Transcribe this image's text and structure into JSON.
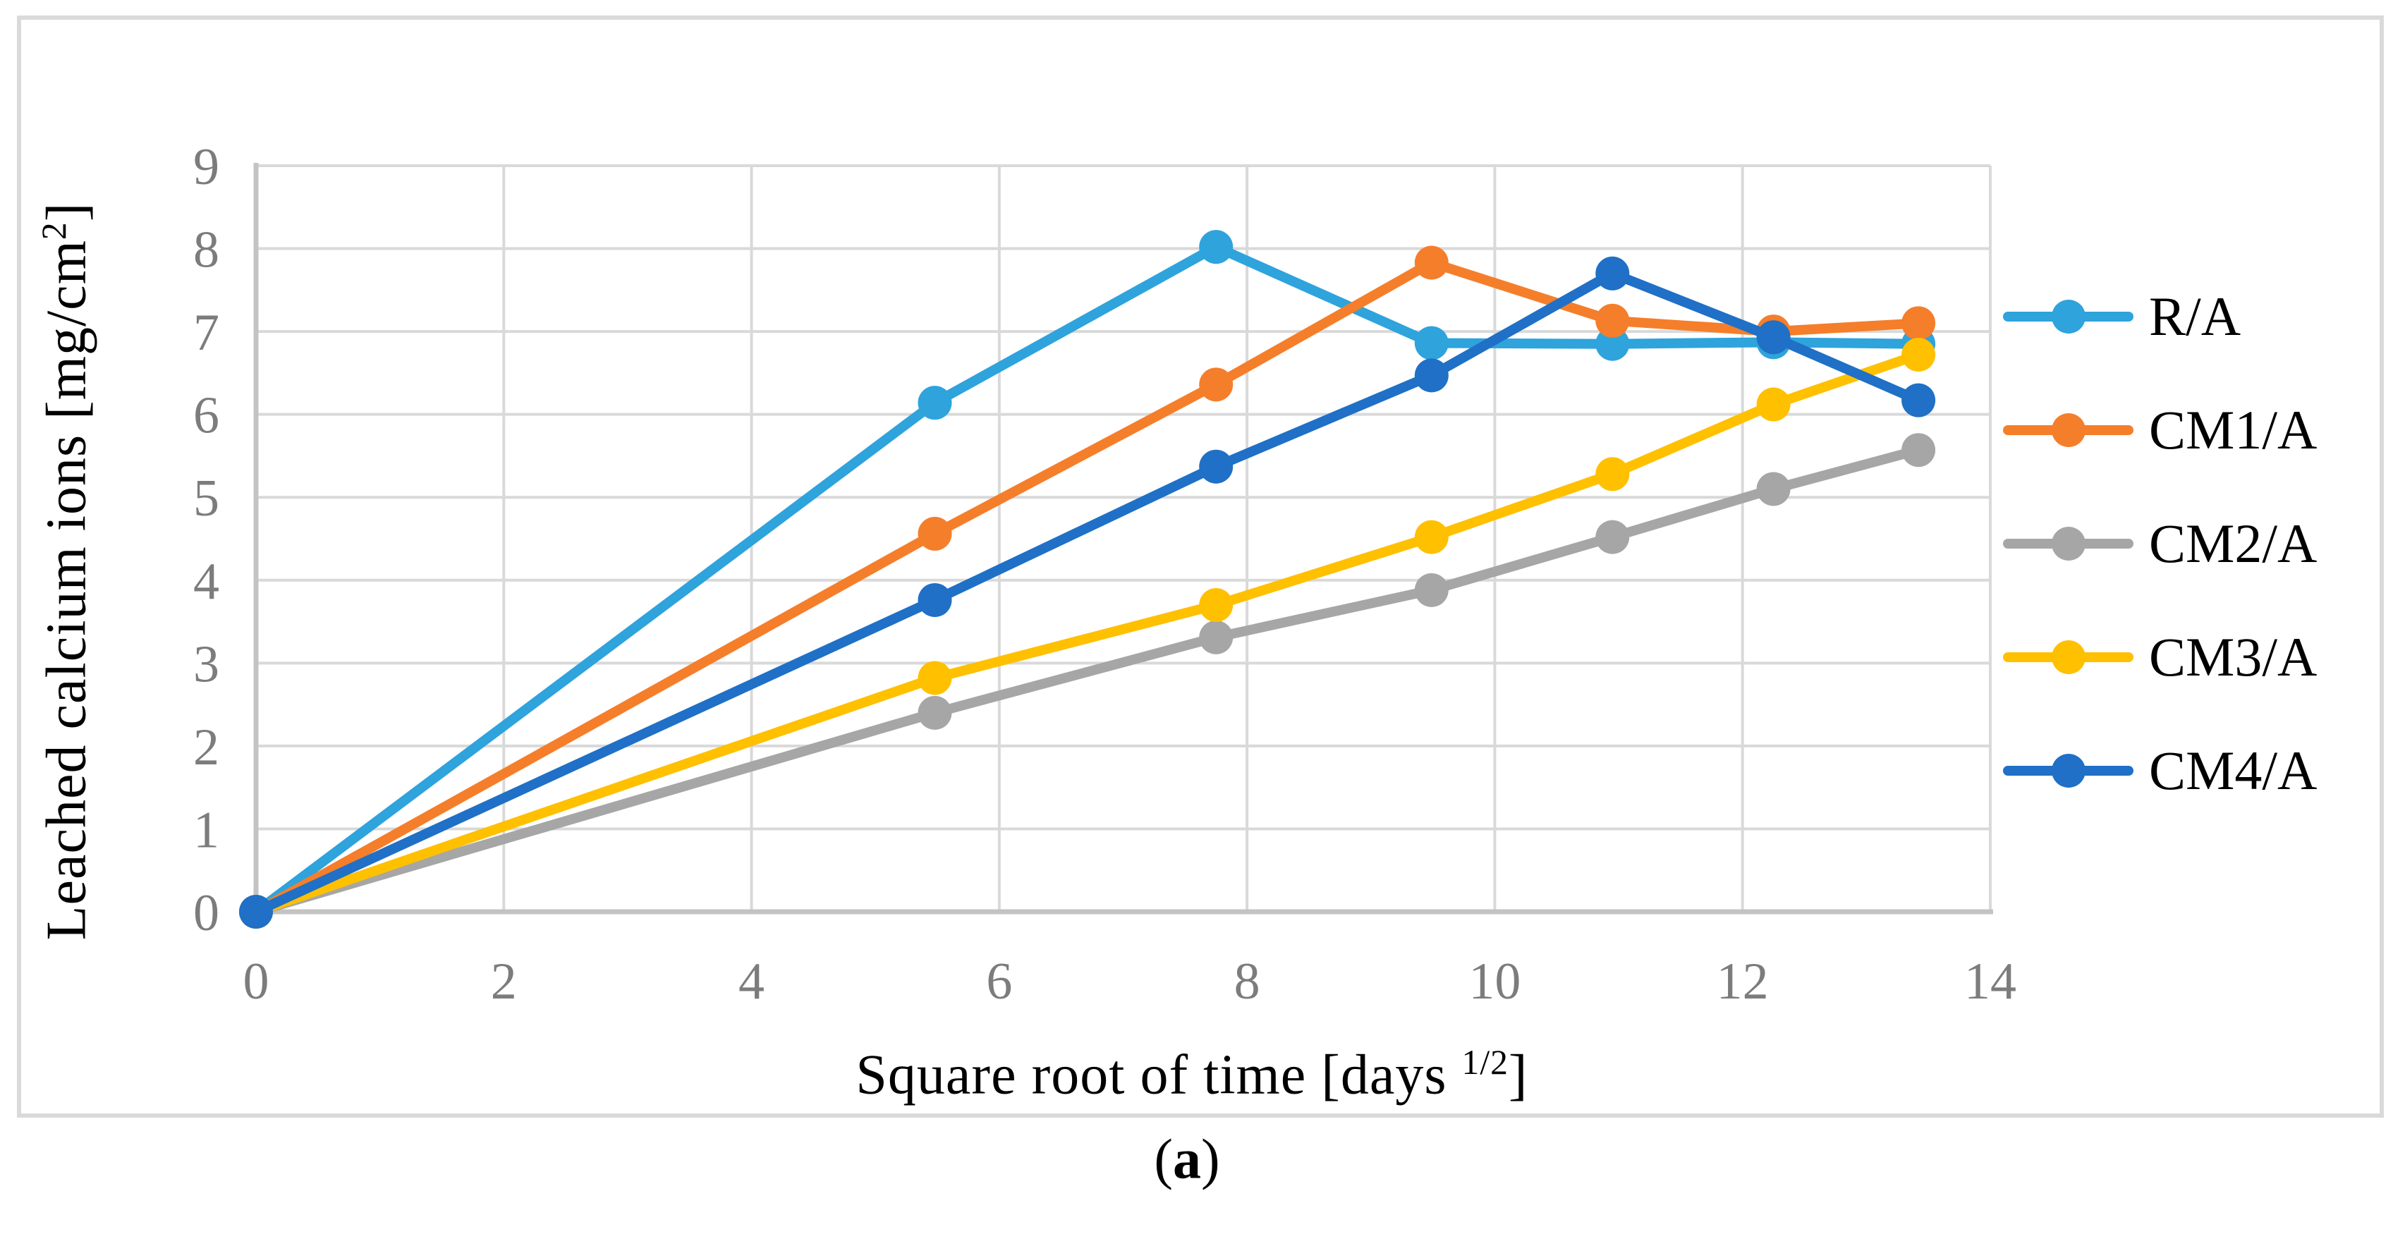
{
  "figure": {
    "caption": {
      "open": "(",
      "letter": "a",
      "close": ")"
    }
  },
  "chart_data": {
    "type": "line",
    "title": "",
    "xlabel": {
      "prefix": "Square root of time [days ",
      "sup": "1/2",
      "suffix": "]"
    },
    "ylabel": {
      "prefix": "Leached calcium ions [mg/cm",
      "sup": "2",
      "suffix": "]"
    },
    "x": [
      0,
      5.48,
      7.75,
      9.49,
      10.95,
      12.25,
      13.42
    ],
    "xlim": [
      0,
      14
    ],
    "ylim": [
      0,
      9
    ],
    "x_ticks": [
      0,
      2,
      4,
      6,
      8,
      10,
      12,
      14
    ],
    "y_ticks": [
      0,
      1,
      2,
      3,
      4,
      5,
      6,
      7,
      8,
      9
    ],
    "grid": true,
    "legend_position": "right",
    "series": [
      {
        "name": "R/A",
        "color": "#2EA3DC",
        "values": [
          0,
          6.14,
          8.02,
          6.86,
          6.85,
          6.87,
          6.85
        ]
      },
      {
        "name": "CM1/A",
        "color": "#F57E2B",
        "values": [
          0,
          4.56,
          6.36,
          7.83,
          7.13,
          7.0,
          7.1
        ]
      },
      {
        "name": "CM2/A",
        "color": "#A6A6A6",
        "values": [
          0,
          2.4,
          3.31,
          3.88,
          4.52,
          5.1,
          5.57
        ]
      },
      {
        "name": "CM3/A",
        "color": "#FFC000",
        "values": [
          0,
          2.82,
          3.7,
          4.52,
          5.28,
          6.12,
          6.72
        ]
      },
      {
        "name": "CM4/A",
        "color": "#1F70C6",
        "values": [
          0,
          3.76,
          5.37,
          6.47,
          7.7,
          6.93,
          6.17
        ]
      }
    ],
    "style": {
      "tick_label_color": "#7C7C7C",
      "grid_color": "#D9D9D9",
      "axis_line_color": "#C3C3C3",
      "frame_color": "#DADADA"
    }
  }
}
